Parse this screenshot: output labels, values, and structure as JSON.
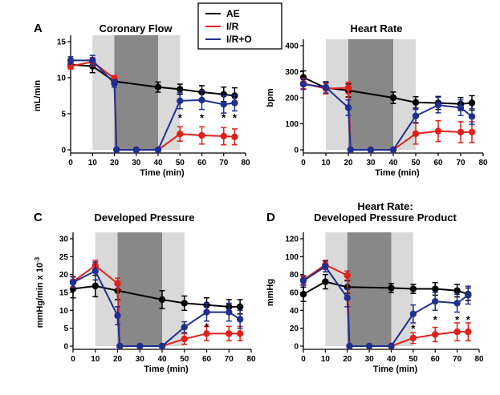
{
  "legend": {
    "items": [
      {
        "label": "AE",
        "color": "#000000"
      },
      {
        "label": "I/R",
        "color": "#e0201b"
      },
      {
        "label": "I/R+O",
        "color": "#1f2f8f"
      }
    ]
  },
  "colors": {
    "AE": "#000000",
    "IR": "#e0201b",
    "IRO": "#1f2f8f",
    "shade_light": "#d9d9d9",
    "shade_dark": "#888888"
  },
  "chart_data": [
    {
      "id": "A",
      "letter": "A",
      "type": "line",
      "title": "Coronary Flow",
      "title_lines": [
        "Coronary Flow"
      ],
      "xlabel": "Time (min)",
      "ylabel": "mL/min",
      "xlim": [
        0,
        80
      ],
      "ylim": [
        0,
        15
      ],
      "xticks": [
        0,
        10,
        20,
        30,
        40,
        50,
        60,
        70,
        80
      ],
      "yticks": [
        0,
        5,
        10,
        15
      ],
      "shaded": [
        {
          "from": 10,
          "to": 20,
          "shade": "light"
        },
        {
          "from": 20,
          "to": 40,
          "shade": "dark"
        },
        {
          "from": 40,
          "to": 50,
          "shade": "light"
        }
      ],
      "series": [
        {
          "name": "AE",
          "x": [
            0,
            10,
            20,
            40,
            50,
            60,
            70,
            75
          ],
          "y": [
            11.8,
            11.6,
            9.5,
            8.7,
            8.4,
            8.0,
            7.7,
            7.5
          ],
          "err": [
            0.5,
            0.9,
            0.5,
            0.7,
            0.7,
            0.9,
            1.0,
            1.1
          ]
        },
        {
          "name": "I/R",
          "x": [
            0,
            10,
            20,
            21,
            30,
            40,
            50,
            60,
            70,
            75
          ],
          "y": [
            11.6,
            12.2,
            9.9,
            0.0,
            0.0,
            0.0,
            2.2,
            2.0,
            1.9,
            1.8
          ],
          "err": [
            0.4,
            0.6,
            0.4,
            0,
            0,
            0,
            1.0,
            1.2,
            1.2,
            1.1
          ]
        },
        {
          "name": "I/R+O",
          "x": [
            0,
            10,
            20,
            21,
            30,
            40,
            50,
            60,
            70,
            75
          ],
          "y": [
            12.4,
            12.4,
            9.2,
            0.0,
            0.0,
            0.0,
            6.8,
            6.9,
            6.3,
            6.5
          ],
          "err": [
            0.5,
            0.7,
            0.5,
            0,
            0,
            0,
            1.1,
            1.3,
            1.2,
            1.1
          ]
        }
      ],
      "significance": [
        {
          "x": 50,
          "y": 4.5,
          "label": "*"
        },
        {
          "x": 60,
          "y": 4.5,
          "label": "*"
        },
        {
          "x": 70,
          "y": 4.5,
          "label": "*"
        },
        {
          "x": 75,
          "y": 4.5,
          "label": "*"
        }
      ]
    },
    {
      "id": "B",
      "letter": "B",
      "type": "line",
      "title": "Heart Rate",
      "title_lines": [
        "Heart Rate"
      ],
      "xlabel": "Time (min)",
      "ylabel": "bpm",
      "xlim": [
        0,
        80
      ],
      "ylim": [
        0,
        400
      ],
      "xticks": [
        0,
        10,
        20,
        30,
        40,
        50,
        60,
        70,
        80
      ],
      "yticks": [
        0,
        100,
        200,
        300,
        400
      ],
      "shaded": [
        {
          "from": 10,
          "to": 20,
          "shade": "light"
        },
        {
          "from": 20,
          "to": 40,
          "shade": "dark"
        },
        {
          "from": 40,
          "to": 50,
          "shade": "light"
        }
      ],
      "series": [
        {
          "name": "AE",
          "x": [
            0,
            10,
            20,
            40,
            50,
            60,
            70,
            75
          ],
          "y": [
            278,
            238,
            228,
            200,
            182,
            180,
            176,
            180
          ],
          "err": [
            25,
            20,
            25,
            22,
            22,
            25,
            25,
            28
          ]
        },
        {
          "name": "I/R",
          "x": [
            0,
            10,
            20,
            21,
            30,
            40,
            50,
            60,
            70,
            75
          ],
          "y": [
            255,
            235,
            238,
            0,
            0,
            0,
            62,
            72,
            68,
            68
          ],
          "err": [
            20,
            20,
            22,
            0,
            0,
            0,
            40,
            40,
            40,
            40
          ]
        },
        {
          "name": "I/R+O",
          "x": [
            0,
            10,
            20,
            21,
            30,
            40,
            50,
            60,
            70,
            75
          ],
          "y": [
            252,
            240,
            162,
            0,
            0,
            0,
            130,
            172,
            162,
            128
          ],
          "err": [
            20,
            22,
            30,
            0,
            0,
            0,
            25,
            30,
            30,
            30
          ]
        }
      ],
      "significance": []
    },
    {
      "id": "C",
      "letter": "C",
      "type": "line",
      "title": "Developed Pressure",
      "title_lines": [
        "Developed Pressure"
      ],
      "xlabel": "Time (min)",
      "ylabel": "mmHg/min x 10",
      "ylabel_sup": "-3",
      "xlim": [
        0,
        80
      ],
      "ylim": [
        0,
        30
      ],
      "xticks": [
        0,
        10,
        20,
        30,
        40,
        50,
        60,
        70,
        80
      ],
      "yticks": [
        0,
        5,
        10,
        15,
        20,
        25,
        30
      ],
      "shaded": [
        {
          "from": 10,
          "to": 20,
          "shade": "light"
        },
        {
          "from": 20,
          "to": 40,
          "shade": "dark"
        },
        {
          "from": 40,
          "to": 50,
          "shade": "light"
        }
      ],
      "series": [
        {
          "name": "AE",
          "x": [
            0,
            10,
            20,
            40,
            50,
            60,
            70,
            75
          ],
          "y": [
            16,
            16.8,
            15.5,
            13,
            12,
            11.5,
            11,
            11
          ],
          "err": [
            2.5,
            3,
            2.5,
            2.5,
            2.0,
            2.0,
            2.0,
            2.0
          ]
        },
        {
          "name": "I/R",
          "x": [
            0,
            10,
            20,
            21,
            30,
            40,
            50,
            60,
            70,
            75
          ],
          "y": [
            18,
            22.5,
            17.5,
            0,
            0,
            0,
            2,
            3.5,
            3.5,
            3.5
          ],
          "err": [
            1.5,
            1.5,
            1.5,
            0,
            0,
            0,
            1.5,
            2.0,
            2.0,
            2.0
          ]
        },
        {
          "name": "I/R+O",
          "x": [
            0,
            10,
            20,
            21,
            30,
            40,
            50,
            60,
            70,
            75
          ],
          "y": [
            17.8,
            21,
            8.5,
            0,
            0,
            0,
            5.3,
            9.5,
            9.5,
            7.5
          ],
          "err": [
            1.5,
            2.5,
            2.5,
            0,
            0,
            0,
            1.5,
            2.5,
            2.5,
            2.5
          ]
        }
      ],
      "significance": [
        {
          "x": 60,
          "y": 5.5,
          "label": "*"
        }
      ]
    },
    {
      "id": "D",
      "letter": "D",
      "type": "line",
      "title": "Heart Rate: Developed Pressure Product",
      "title_lines": [
        "Heart Rate:",
        "Developed Pressure Product"
      ],
      "xlabel": "Time (min)",
      "ylabel": "mmHg",
      "xlim": [
        0,
        80
      ],
      "ylim": [
        0,
        120
      ],
      "xticks": [
        0,
        10,
        20,
        30,
        40,
        50,
        60,
        70,
        80
      ],
      "yticks": [
        0,
        20,
        40,
        60,
        80,
        100,
        120
      ],
      "shaded": [
        {
          "from": 10,
          "to": 20,
          "shade": "light"
        },
        {
          "from": 20,
          "to": 40,
          "shade": "dark"
        },
        {
          "from": 40,
          "to": 50,
          "shade": "light"
        }
      ],
      "series": [
        {
          "name": "AE",
          "x": [
            0,
            10,
            20,
            40,
            50,
            60,
            70,
            75
          ],
          "y": [
            58,
            72,
            66,
            65,
            64,
            64,
            62,
            58
          ],
          "err": [
            8,
            8,
            7,
            5,
            5,
            7,
            7,
            7
          ]
        },
        {
          "name": "I/R",
          "x": [
            0,
            10,
            20,
            21,
            30,
            40,
            50,
            60,
            70,
            75
          ],
          "y": [
            74,
            91,
            79,
            0,
            0,
            0,
            9,
            13,
            16,
            16
          ],
          "err": [
            5,
            5,
            5,
            0,
            0,
            0,
            6,
            8,
            10,
            10
          ]
        },
        {
          "name": "I/R+O",
          "x": [
            0,
            10,
            20,
            21,
            30,
            40,
            50,
            60,
            70,
            75
          ],
          "y": [
            73,
            89,
            54,
            0,
            0,
            0,
            36,
            50,
            48,
            57
          ],
          "err": [
            5,
            6,
            10,
            0,
            0,
            0,
            10,
            10,
            10,
            10
          ]
        }
      ],
      "significance": [
        {
          "x": 50,
          "y": 20,
          "label": "*"
        },
        {
          "x": 60,
          "y": 30,
          "label": "*"
        },
        {
          "x": 70,
          "y": 30,
          "label": "*"
        },
        {
          "x": 75,
          "y": 30,
          "label": "*"
        }
      ]
    }
  ]
}
